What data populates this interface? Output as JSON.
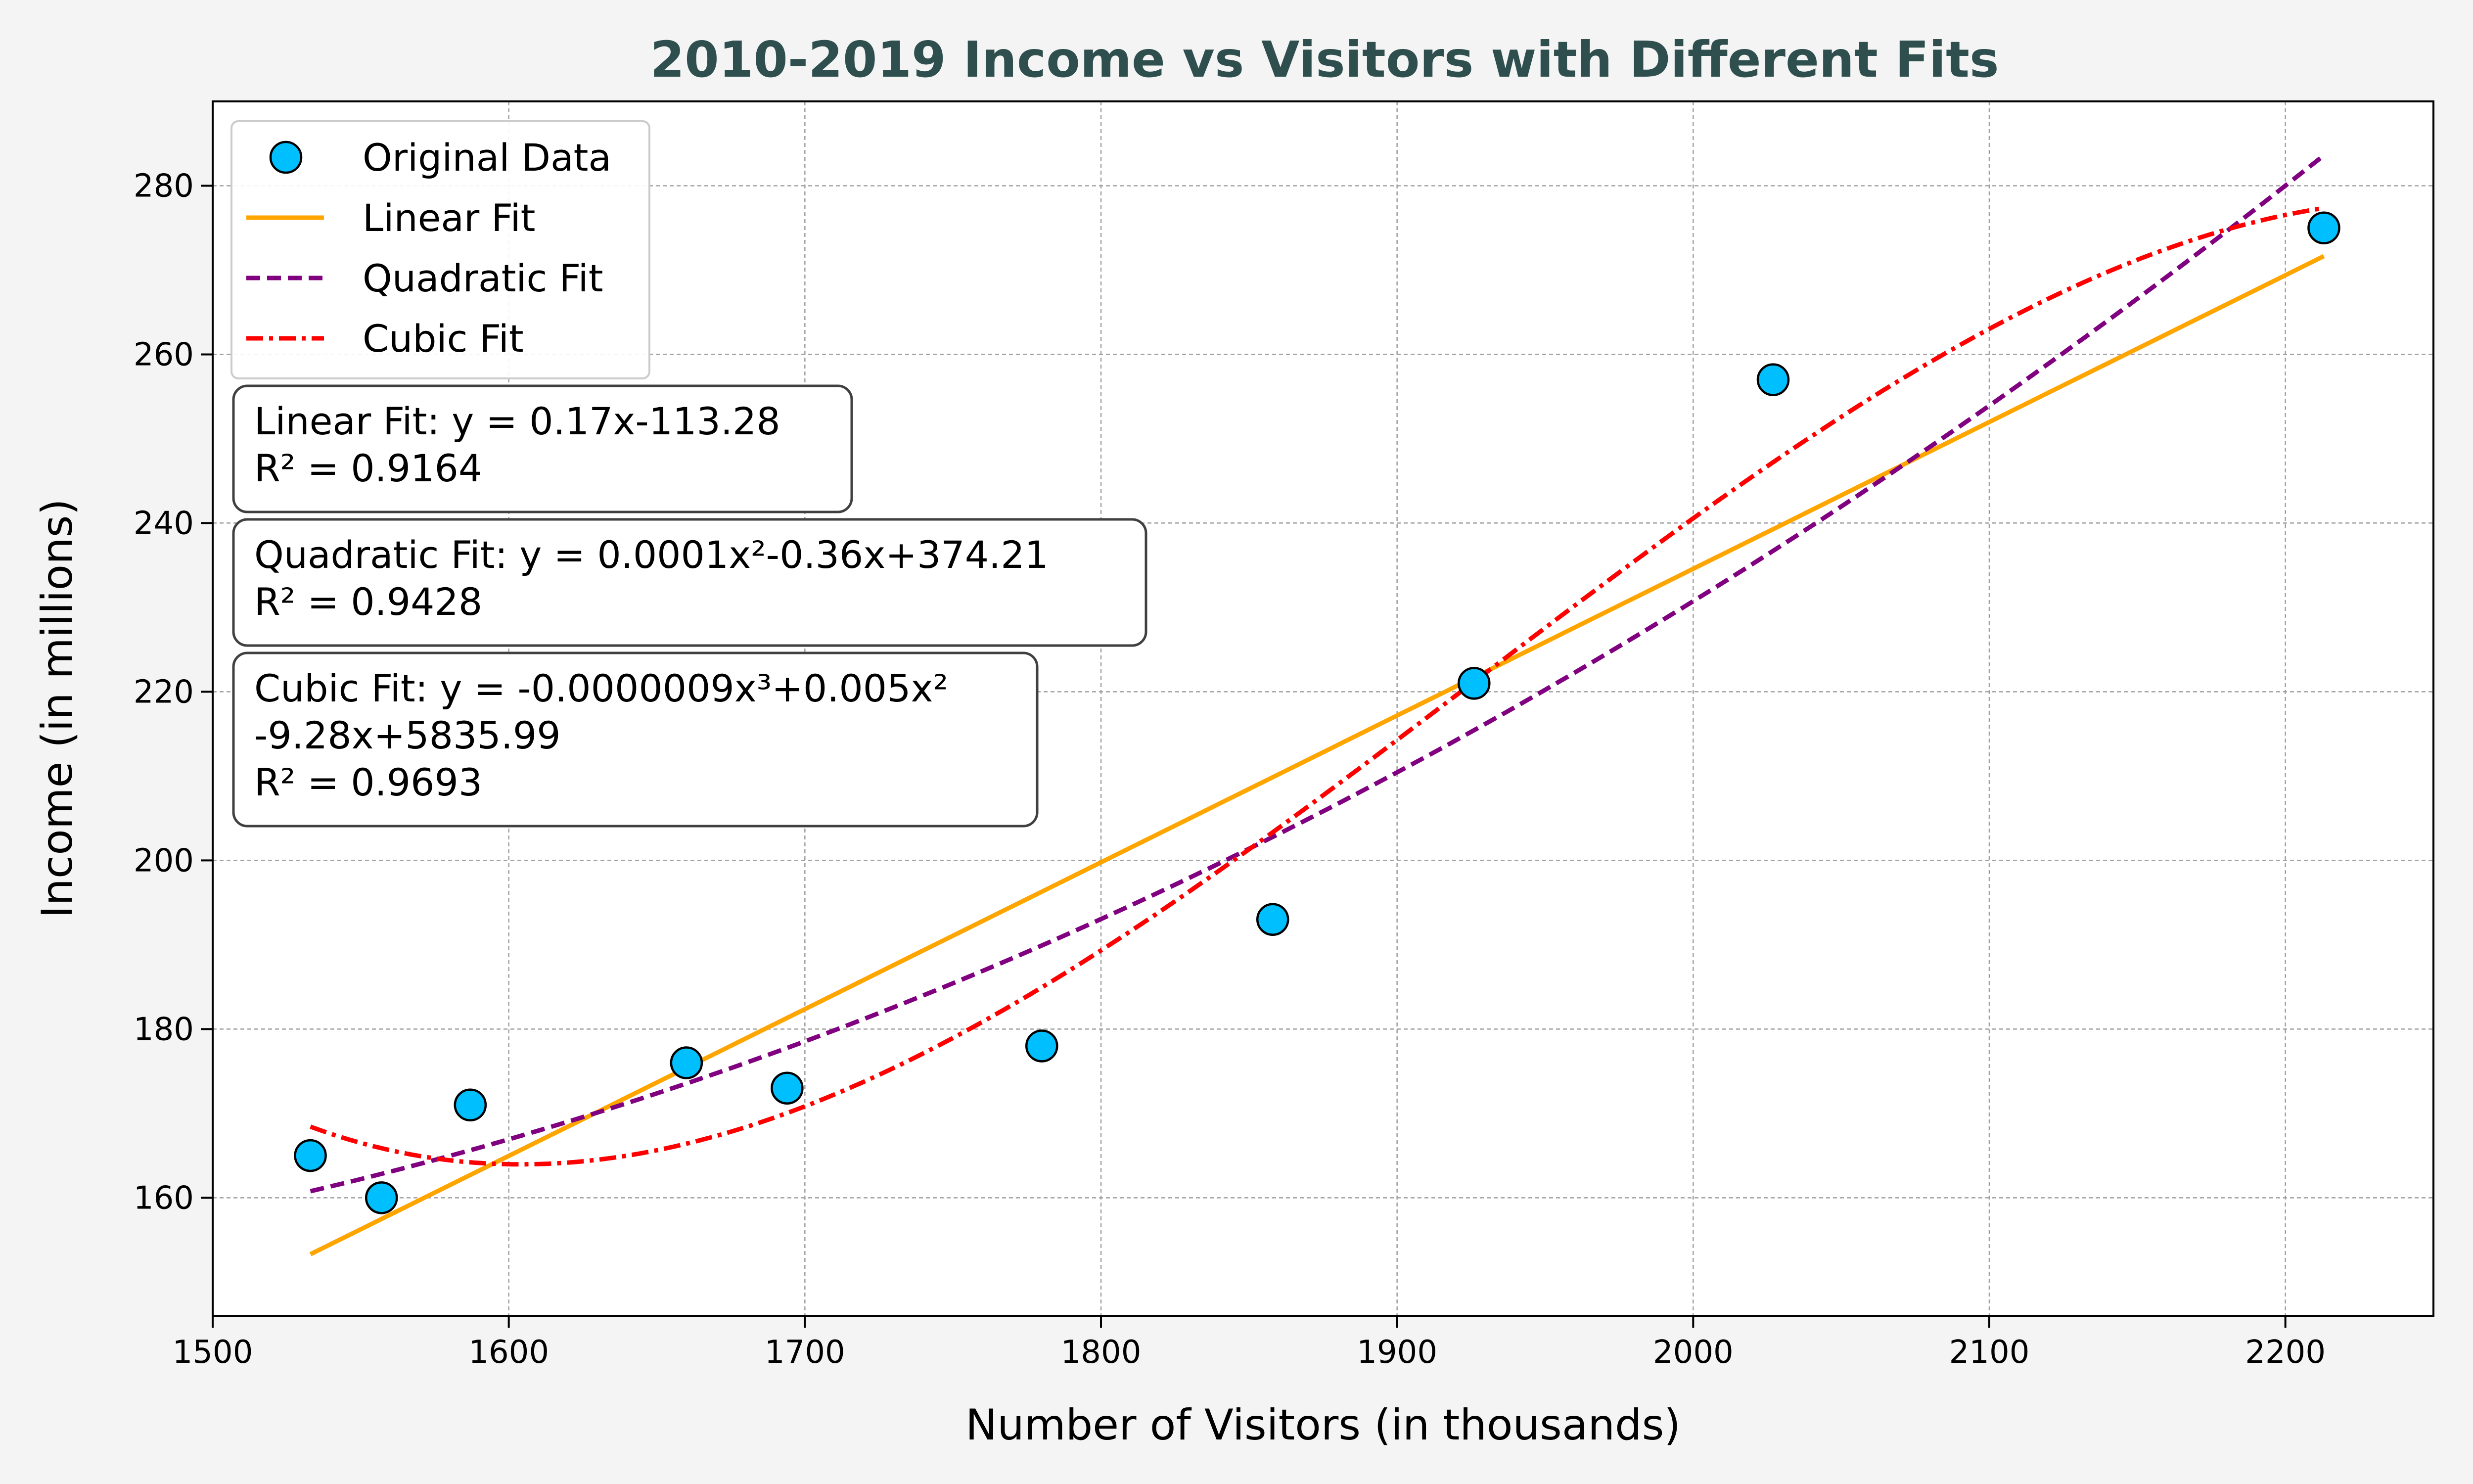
{
  "chart_data": {
    "type": "scatter",
    "title": "2010-2019 Income vs Visitors with Different Fits",
    "xlabel": "Number of Visitors (in thousands)",
    "ylabel": "Income (in millions)",
    "xlim": [
      1500,
      2250
    ],
    "ylim": [
      146,
      290
    ],
    "x_ticks": [
      1500,
      1600,
      1700,
      1800,
      1900,
      2000,
      2100,
      2200
    ],
    "y_ticks": [
      160,
      180,
      200,
      220,
      240,
      260,
      280
    ],
    "grid": true,
    "legend_position": "top-left",
    "series": [
      {
        "name": "Original Data",
        "kind": "scatter",
        "color": "#00bfff",
        "x": [
          1533,
          1557,
          1587,
          1660,
          1694,
          1780,
          1858,
          1926,
          2027,
          2213
        ],
        "y": [
          165,
          160,
          171,
          176,
          173,
          178,
          193,
          221,
          257,
          275
        ]
      },
      {
        "name": "Linear Fit",
        "kind": "fit",
        "degree": 1,
        "color": "#ffa500",
        "dash": "solid"
      },
      {
        "name": "Quadratic Fit",
        "kind": "fit",
        "degree": 2,
        "color": "#800080",
        "dash": "dashed"
      },
      {
        "name": "Cubic Fit",
        "kind": "fit",
        "degree": 3,
        "color": "#ff0000",
        "dash": "dashdot"
      }
    ],
    "annotations": [
      {
        "lines": [
          "Linear Fit: y = 0.17x-113.28",
          "R² = 0.9164"
        ]
      },
      {
        "lines": [
          "Quadratic Fit: y = 0.0001x²-0.36x+374.21",
          "R² = 0.9428"
        ]
      },
      {
        "lines": [
          "Cubic Fit: y = -0.0000009x³+0.005x²",
          "-9.28x+5835.99",
          "R² = 0.9693"
        ]
      }
    ],
    "colors": {
      "title": "#2f4f4f",
      "grid": "#a0a0a0",
      "plot_bg": "#ffffff",
      "figure_bg": "#f4f4f4"
    }
  }
}
